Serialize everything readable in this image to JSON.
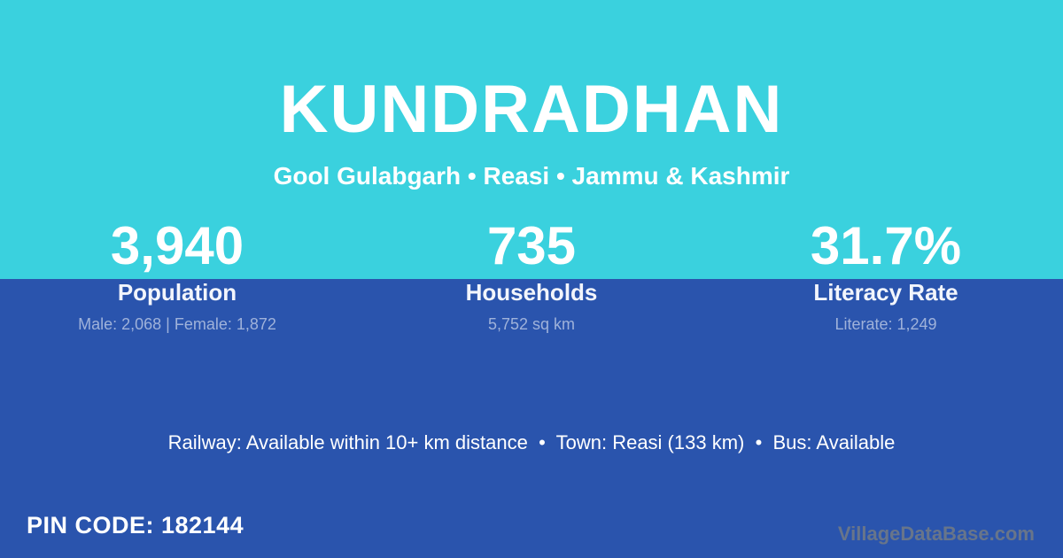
{
  "header": {
    "title": "KUNDRADHAN",
    "location": "Gool Gulabgarh • Reasi • Jammu & Kashmir"
  },
  "stats": [
    {
      "value": "3,940",
      "label": "Population",
      "sub": "Male: 2,068 | Female: 1,872"
    },
    {
      "value": "735",
      "label": "Households",
      "sub": "5,752 sq km"
    },
    {
      "value": "31.7%",
      "label": "Literacy Rate",
      "sub": "Literate: 1,249"
    }
  ],
  "transport": {
    "text": "Railway: Available within 10+ km distance  •  Town: Reasi (133 km)  •  Bus: Available"
  },
  "footer": {
    "pin_code_text": "PIN CODE: 182144",
    "pin_code": "182144",
    "watermark": "VillageDataBase.com"
  },
  "colors": {
    "top_band": "#3ad1de",
    "bottom_band": "#2a54ad",
    "primary_text": "#ffffff",
    "stat_sub_text": "#9fb2da",
    "watermark_text": "#68758a"
  }
}
